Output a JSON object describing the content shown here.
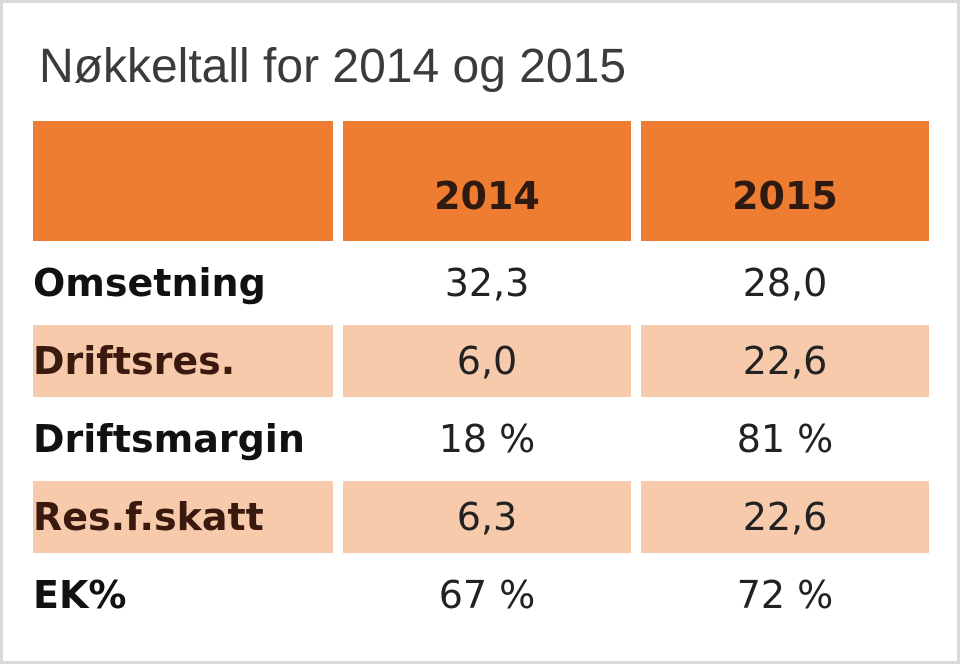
{
  "title": "Nøkkeltall for 2014 og 2015",
  "colors": {
    "header_fill": "#ee7d31",
    "alt_row_fill": "#f7caac"
  },
  "chart_data": {
    "type": "table",
    "title": "Nøkkeltall for 2014 og 2015",
    "columns": [
      "",
      "2014",
      "2015"
    ],
    "rows": [
      {
        "label": "Omsetning",
        "v2014": "32,3",
        "v2015": "28,0"
      },
      {
        "label": "Driftsres.",
        "v2014": "6,0",
        "v2015": "22,6"
      },
      {
        "label": "Driftsmargin",
        "v2014": "18 %",
        "v2015": "81 %"
      },
      {
        "label": "Res.f.skatt",
        "v2014": "6,3",
        "v2015": "22,6"
      },
      {
        "label": "EK%",
        "v2014": "67 %",
        "v2015": "72 %"
      }
    ]
  }
}
